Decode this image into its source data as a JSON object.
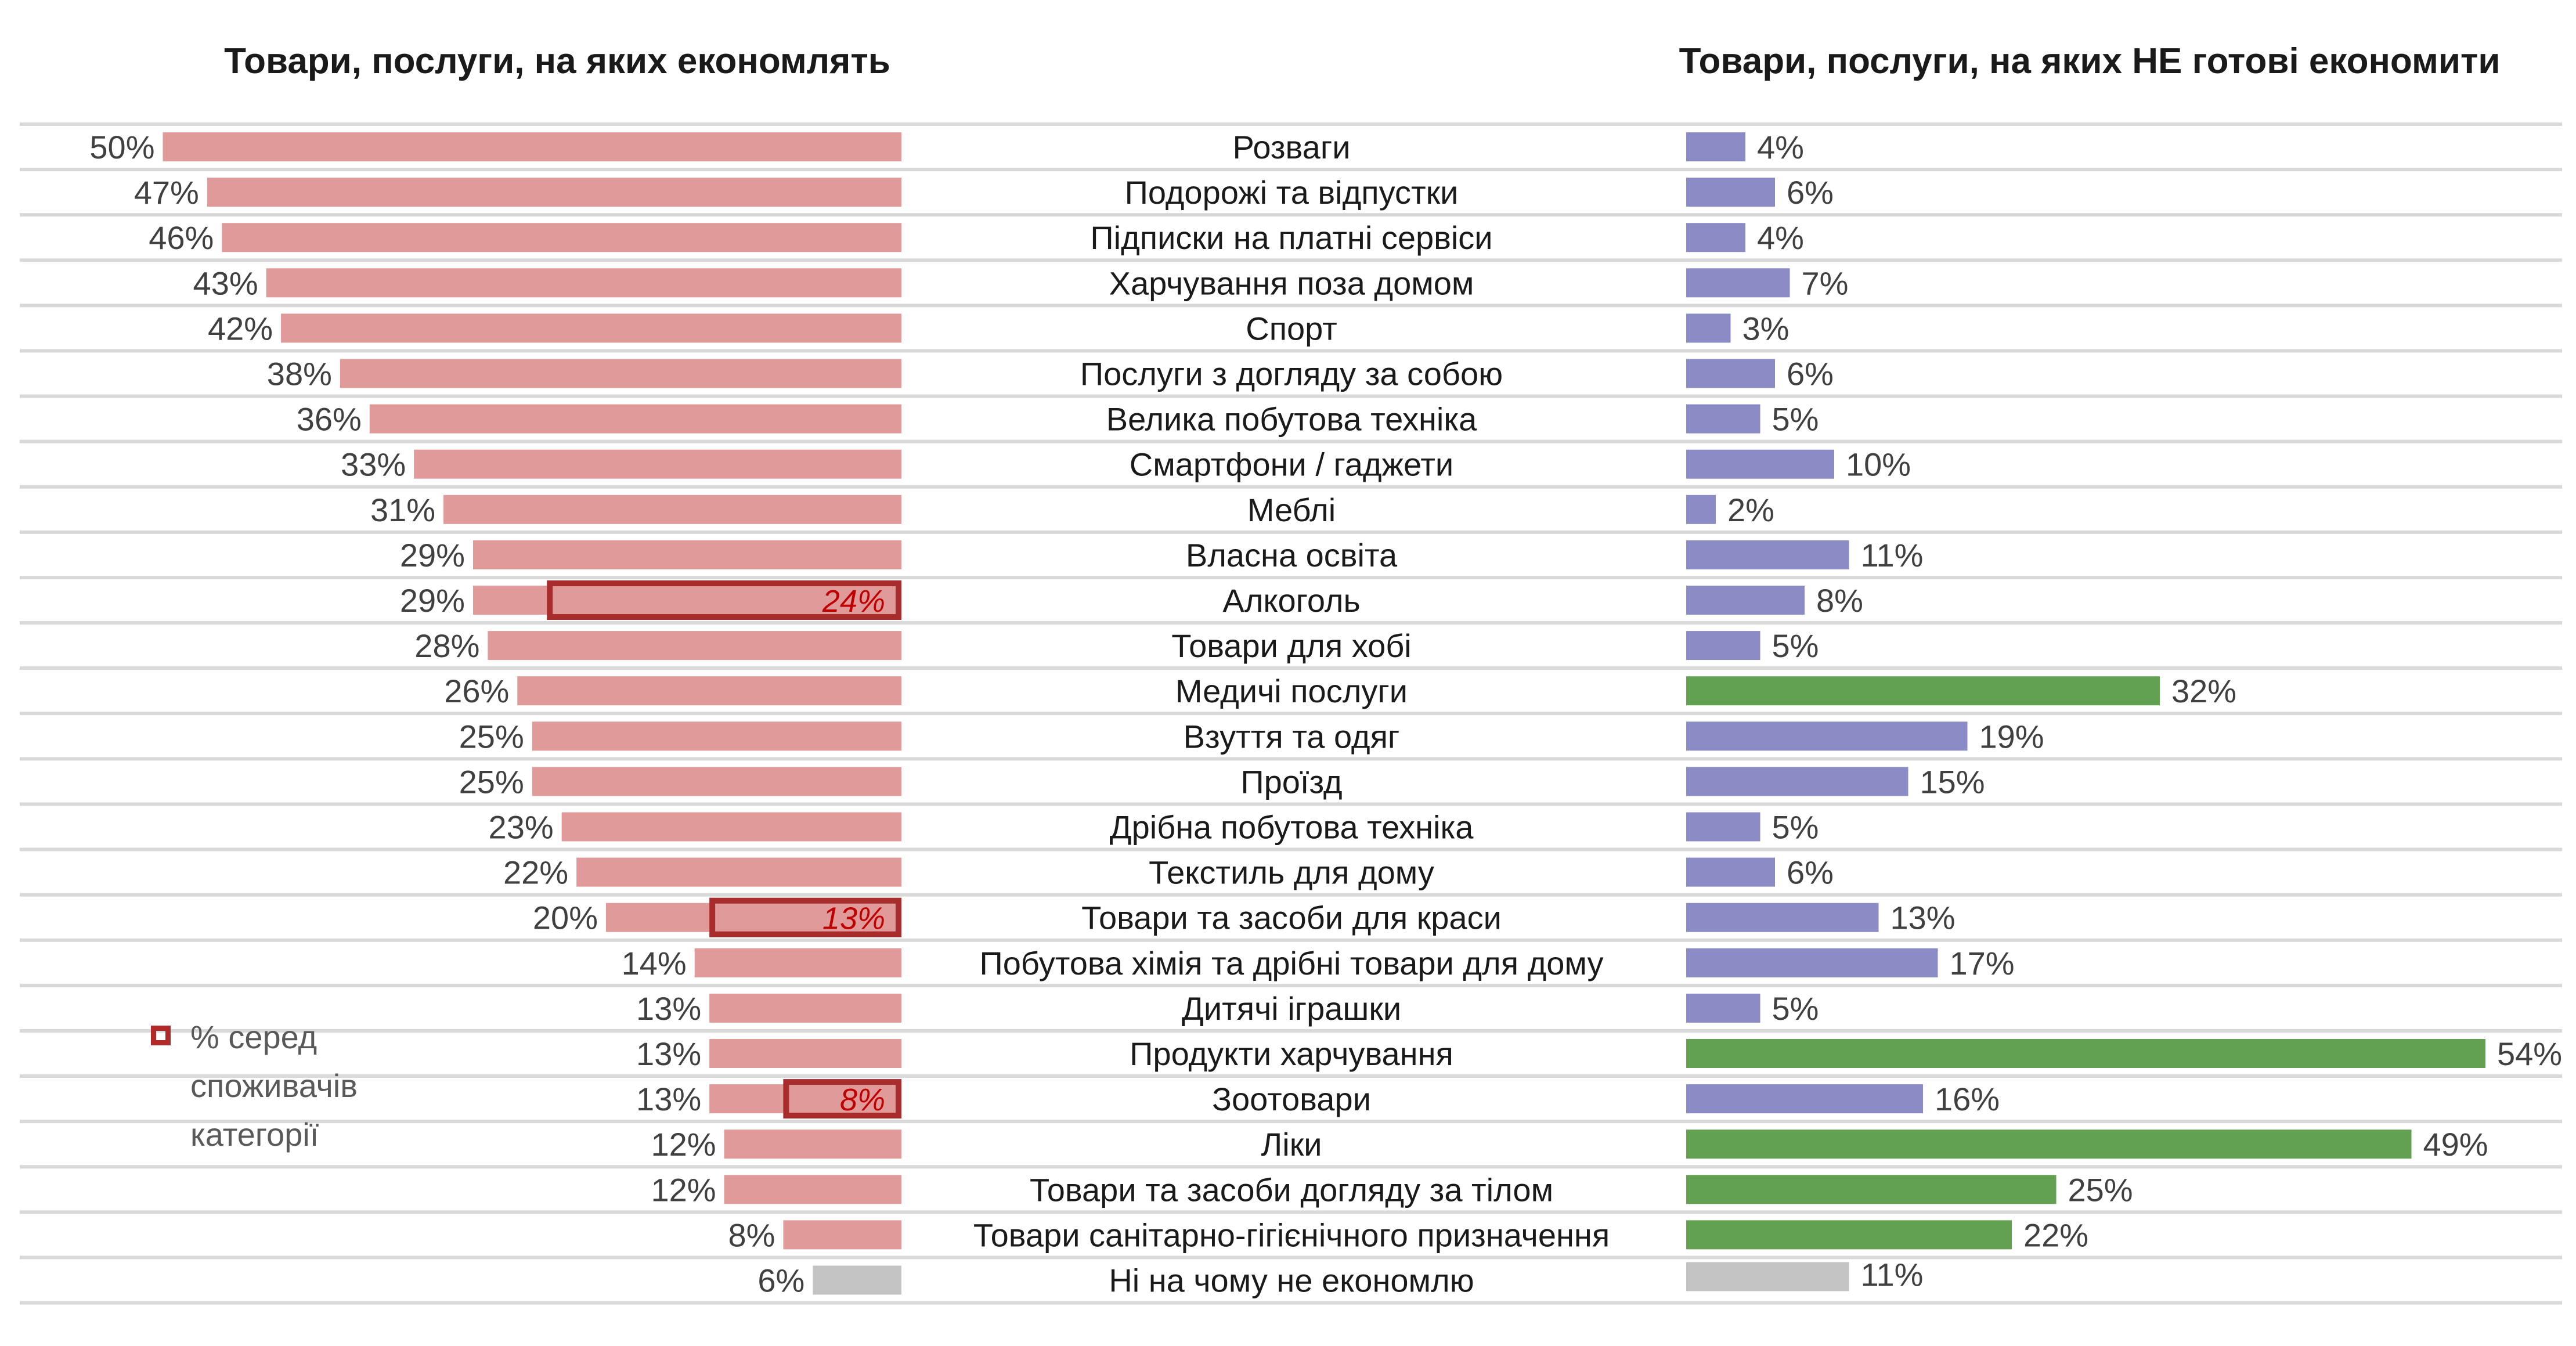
{
  "chart_data": {
    "type": "bar",
    "orientation": "horizontal",
    "panels": [
      {
        "title": "Товари, послуги, на яких економлять",
        "direction": "left"
      },
      {
        "title": "Товари, послуги, на яких НЕ готові економити",
        "direction": "right"
      }
    ],
    "categories": [
      "Розваги",
      "Подорожі та відпустки",
      "Підписки на платні сервіси",
      "Харчування поза домом",
      "Спорт",
      "Послуги з догляду за собою",
      "Велика побутова техніка",
      "Смартфони / гаджети",
      "Меблі",
      "Власна освіта",
      "Алкоголь",
      "Товари для хобі",
      "Медичі послуги",
      "Взуття та одяг",
      "Проїзд",
      "Дрібна побутова техніка",
      "Текстиль для дому",
      "Товари та засоби для краси",
      "Побутова хімія та дрібні товари для дому",
      "Дитячі іграшки",
      "Продукти харчування",
      "Зоотовари",
      "Ліки",
      "Товари та засоби догляду за тілом",
      "Товари санітарно-гігієнічного призначення",
      "Ні на чому не економлю"
    ],
    "series": [
      {
        "panel": 0,
        "values": [
          50,
          47,
          46,
          43,
          42,
          38,
          36,
          33,
          31,
          29,
          29,
          28,
          26,
          25,
          25,
          23,
          22,
          20,
          14,
          13,
          13,
          13,
          12,
          12,
          8,
          6
        ],
        "unit": "%"
      },
      {
        "panel": 0,
        "name": "% серед споживачів категорії",
        "highlight": true,
        "values": [
          null,
          null,
          null,
          null,
          null,
          null,
          null,
          null,
          null,
          null,
          24,
          null,
          null,
          null,
          null,
          null,
          null,
          13,
          null,
          null,
          null,
          8,
          null,
          null,
          null,
          null
        ],
        "unit": "%"
      },
      {
        "panel": 1,
        "values": [
          4,
          6,
          4,
          7,
          3,
          6,
          5,
          10,
          2,
          11,
          8,
          5,
          32,
          19,
          15,
          5,
          6,
          13,
          17,
          5,
          54,
          16,
          49,
          25,
          22,
          11
        ],
        "unit": "%"
      }
    ],
    "right_bar_groups": [
      "p",
      "p",
      "p",
      "p",
      "p",
      "p",
      "p",
      "p",
      "p",
      "p",
      "p",
      "p",
      "g",
      "p",
      "p",
      "p",
      "p",
      "p",
      "p",
      "p",
      "g",
      "p",
      "g",
      "g",
      "g",
      "n"
    ],
    "colors": {
      "left_bar": "#e09a9a",
      "highlight_border": "#a82c2c",
      "highlight_text": "#c00000",
      "right_purple": "#8b8bc6",
      "right_green": "#62a052",
      "neutral_gray": "#c3c3c3",
      "grid": "#d9d9d9"
    },
    "grid": true,
    "legend": {
      "label": "% серед споживачів категорії",
      "position": "left-bottom"
    }
  }
}
